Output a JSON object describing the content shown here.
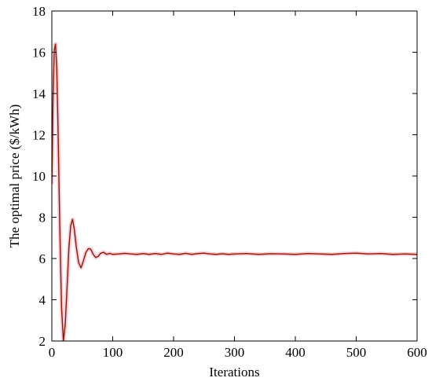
{
  "chart_data": {
    "type": "line",
    "title": "",
    "xlabel": "Iterations",
    "ylabel": "The optimal price ($/kWh)",
    "xlim": [
      0,
      600
    ],
    "ylim": [
      2,
      18
    ],
    "xticks": [
      0,
      100,
      200,
      300,
      400,
      500,
      600
    ],
    "yticks": [
      2,
      4,
      6,
      8,
      10,
      12,
      14,
      16,
      18
    ],
    "grid": false,
    "legend": "none",
    "series": [
      {
        "color": "#8b1a00",
        "band_color": "#f4b6c8",
        "x": [
          0,
          2,
          4,
          6,
          8,
          10,
          13,
          16,
          19,
          22,
          25,
          28,
          31,
          34,
          37,
          40,
          44,
          48,
          52,
          56,
          60,
          64,
          68,
          72,
          76,
          80,
          85,
          90,
          95,
          100,
          110,
          120,
          130,
          140,
          150,
          160,
          170,
          180,
          190,
          200,
          210,
          220,
          230,
          240,
          250,
          260,
          270,
          280,
          290,
          300,
          320,
          340,
          360,
          380,
          400,
          420,
          440,
          460,
          480,
          500,
          520,
          540,
          560,
          580,
          600
        ],
        "y": [
          9.6,
          13.8,
          16.1,
          16.4,
          15.3,
          12.6,
          7.6,
          3.6,
          2.0,
          2.8,
          4.6,
          6.5,
          7.6,
          7.9,
          7.4,
          6.6,
          5.8,
          5.55,
          5.9,
          6.3,
          6.48,
          6.45,
          6.2,
          6.05,
          6.1,
          6.25,
          6.3,
          6.2,
          6.25,
          6.2,
          6.22,
          6.25,
          6.22,
          6.2,
          6.24,
          6.2,
          6.24,
          6.2,
          6.26,
          6.22,
          6.2,
          6.25,
          6.2,
          6.24,
          6.26,
          6.22,
          6.2,
          6.23,
          6.2,
          6.22,
          6.24,
          6.2,
          6.23,
          6.22,
          6.2,
          6.24,
          6.22,
          6.2,
          6.24,
          6.26,
          6.22,
          6.24,
          6.2,
          6.22,
          6.2
        ]
      }
    ]
  }
}
